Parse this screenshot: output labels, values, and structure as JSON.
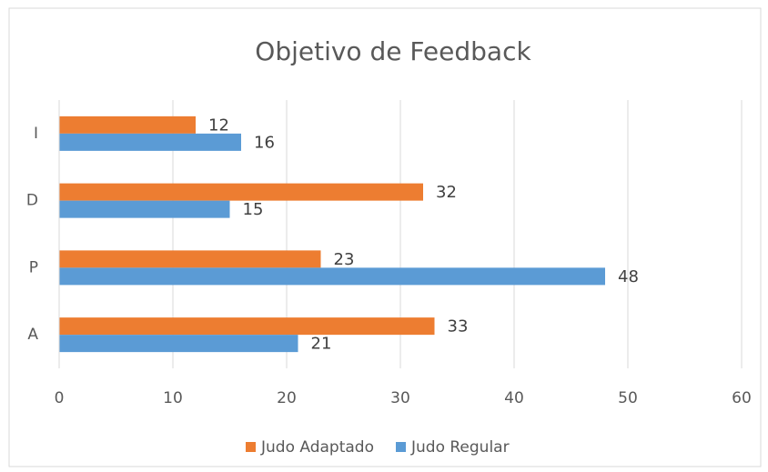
{
  "chart_data": {
    "type": "hbar",
    "title": "Objetivo de Feedback",
    "categories": [
      "I",
      "D",
      "P",
      "A"
    ],
    "series": [
      {
        "name": "Judo Adaptado",
        "color": "#ed7d31",
        "values": [
          12,
          32,
          23,
          33
        ]
      },
      {
        "name": "Judo Regular",
        "color": "#5b9bd5",
        "values": [
          16,
          15,
          48,
          21
        ]
      }
    ],
    "xlim": [
      0,
      60
    ],
    "xticks": [
      0,
      10,
      20,
      30,
      40,
      50,
      60
    ],
    "grid": true,
    "legend": "bottom"
  }
}
